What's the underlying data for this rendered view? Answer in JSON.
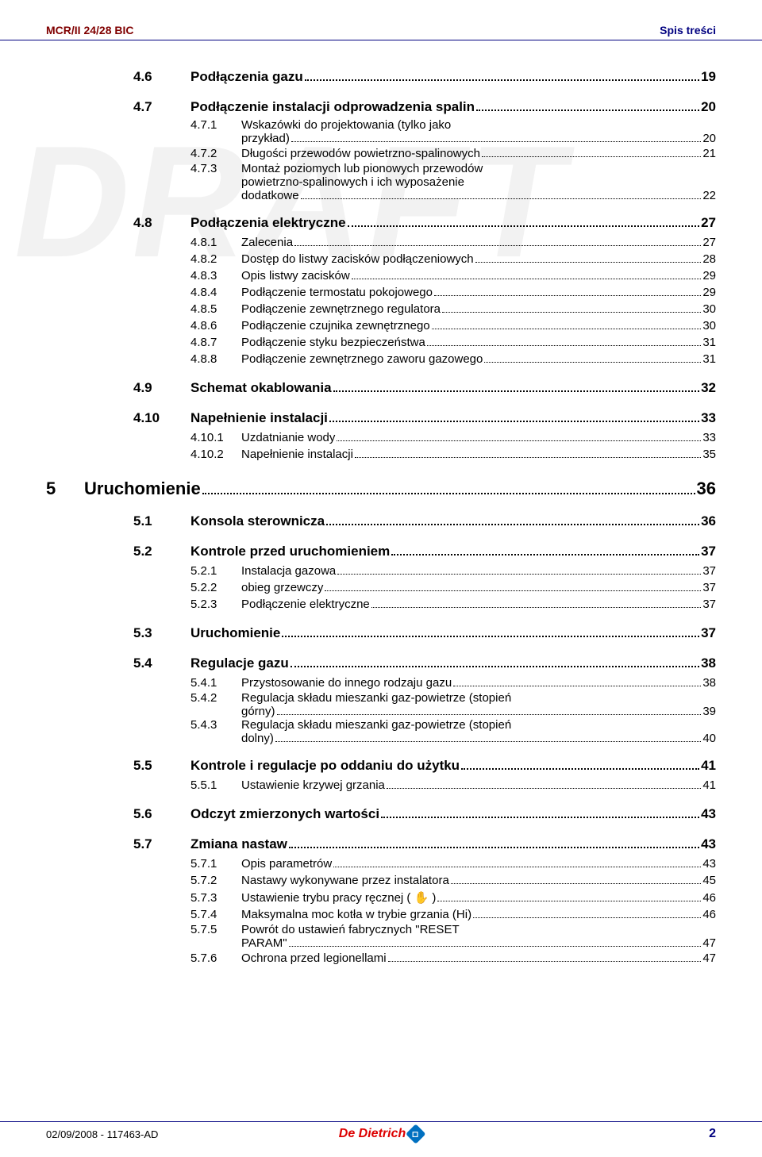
{
  "header": {
    "left": "MCR/II 24/28 BIC",
    "right": "Spis treści"
  },
  "watermark": "DRAFT",
  "footer": {
    "date": "02/09/2008 - 117463-AD",
    "brand": "De Dietrich",
    "page": "2"
  },
  "toc": [
    {
      "lvl": 2,
      "num": "4.6",
      "label": "Podłączenia gazu",
      "page": "19"
    },
    {
      "lvl": 2,
      "num": "4.7",
      "label": "Podłączenie instalacji odprowadzenia spalin",
      "page": "20"
    },
    {
      "lvl": 3,
      "num": "4.7.1",
      "label_lines": [
        "Wskazówki do projektowania (tylko jako",
        "przykład)"
      ],
      "page": "20"
    },
    {
      "lvl": 3,
      "num": "4.7.2",
      "label": "Długości przewodów powietrzno-spalinowych",
      "page": "21"
    },
    {
      "lvl": 3,
      "num": "4.7.3",
      "label_lines": [
        "Montaż poziomych lub pionowych przewodów",
        "powietrzno-spalinowych i ich wyposażenie",
        "dodatkowe"
      ],
      "page": "22"
    },
    {
      "lvl": 2,
      "num": "4.8",
      "label": "Podłączenia elektryczne",
      "page": "27"
    },
    {
      "lvl": 3,
      "num": "4.8.1",
      "label": "Zalecenia",
      "page": "27"
    },
    {
      "lvl": 3,
      "num": "4.8.2",
      "label": "Dostęp do listwy zacisków podłączeniowych",
      "page": "28"
    },
    {
      "lvl": 3,
      "num": "4.8.3",
      "label": "Opis listwy zacisków",
      "page": "29"
    },
    {
      "lvl": 3,
      "num": "4.8.4",
      "label": "Podłączenie termostatu pokojowego",
      "page": "29"
    },
    {
      "lvl": 3,
      "num": "4.8.5",
      "label": "Podłączenie zewnętrznego regulatora",
      "page": "30"
    },
    {
      "lvl": 3,
      "num": "4.8.6",
      "label": "Podłączenie czujnika zewnętrznego",
      "page": "30"
    },
    {
      "lvl": 3,
      "num": "4.8.7",
      "label": "Podłączenie styku bezpieczeństwa",
      "page": "31"
    },
    {
      "lvl": 3,
      "num": "4.8.8",
      "label": "Podłączenie zewnętrznego zaworu gazowego",
      "page": "31"
    },
    {
      "lvl": 2,
      "num": "4.9",
      "label": "Schemat okablowania",
      "page": "32"
    },
    {
      "lvl": 2,
      "num": "4.10",
      "label": "Napełnienie instalacji",
      "page": "33"
    },
    {
      "lvl": 3,
      "num": "4.10.1",
      "label": "Uzdatnianie wody",
      "page": "33"
    },
    {
      "lvl": 3,
      "num": "4.10.2",
      "label": "Napełnienie instalacji",
      "page": "35"
    },
    {
      "lvl": 1,
      "num": "5",
      "label": "Uruchomienie",
      "page": "36"
    },
    {
      "lvl": 2,
      "num": "5.1",
      "label": "Konsola sterownicza",
      "page": "36"
    },
    {
      "lvl": 2,
      "num": "5.2",
      "label": "Kontrole przed uruchomieniem",
      "page": "37"
    },
    {
      "lvl": 3,
      "num": "5.2.1",
      "label": "Instalacja gazowa",
      "page": "37"
    },
    {
      "lvl": 3,
      "num": "5.2.2",
      "label": "obieg grzewczy",
      "page": "37"
    },
    {
      "lvl": 3,
      "num": "5.2.3",
      "label": "Podłączenie elektryczne",
      "page": "37"
    },
    {
      "lvl": 2,
      "num": "5.3",
      "label": "Uruchomienie",
      "page": "37"
    },
    {
      "lvl": 2,
      "num": "5.4",
      "label": "Regulacje gazu",
      "page": "38"
    },
    {
      "lvl": 3,
      "num": "5.4.1",
      "label": "Przystosowanie do innego rodzaju gazu",
      "page": "38"
    },
    {
      "lvl": 3,
      "num": "5.4.2",
      "label_lines": [
        "Regulacja składu mieszanki gaz-powietrze (stopień",
        "górny)"
      ],
      "page": "39"
    },
    {
      "lvl": 3,
      "num": "5.4.3",
      "label_lines": [
        "Regulacja składu mieszanki gaz-powietrze  (stopień",
        "dolny)"
      ],
      "page": "40"
    },
    {
      "lvl": 2,
      "num": "5.5",
      "label": "Kontrole i regulacje po oddaniu do użytku",
      "page": "41"
    },
    {
      "lvl": 3,
      "num": "5.5.1",
      "label": "Ustawienie krzywej grzania",
      "page": "41"
    },
    {
      "lvl": 2,
      "num": "5.6",
      "label": "Odczyt zmierzonych wartości",
      "page": "43"
    },
    {
      "lvl": 2,
      "num": "5.7",
      "label": "Zmiana nastaw",
      "page": "43"
    },
    {
      "lvl": 3,
      "num": "5.7.1",
      "label": "Opis parametrów",
      "page": "43"
    },
    {
      "lvl": 3,
      "num": "5.7.2",
      "label": "Nastawy wykonywane przez instalatora",
      "page": "45"
    },
    {
      "lvl": 3,
      "num": "5.7.3",
      "label": "Ustawienie trybu pracy ręcznej ( ✋ )",
      "page": "46"
    },
    {
      "lvl": 3,
      "num": "5.7.4",
      "label": "Maksymalna moc kotła w trybie grzania (Hi)",
      "page": "46"
    },
    {
      "lvl": 3,
      "num": "5.7.5",
      "label_lines": [
        "Powrót do ustawień fabrycznych \"RESET",
        "PARAM\""
      ],
      "page": "47"
    },
    {
      "lvl": 3,
      "num": "5.7.6",
      "label": "Ochrona przed legionellami",
      "page": "47"
    }
  ]
}
